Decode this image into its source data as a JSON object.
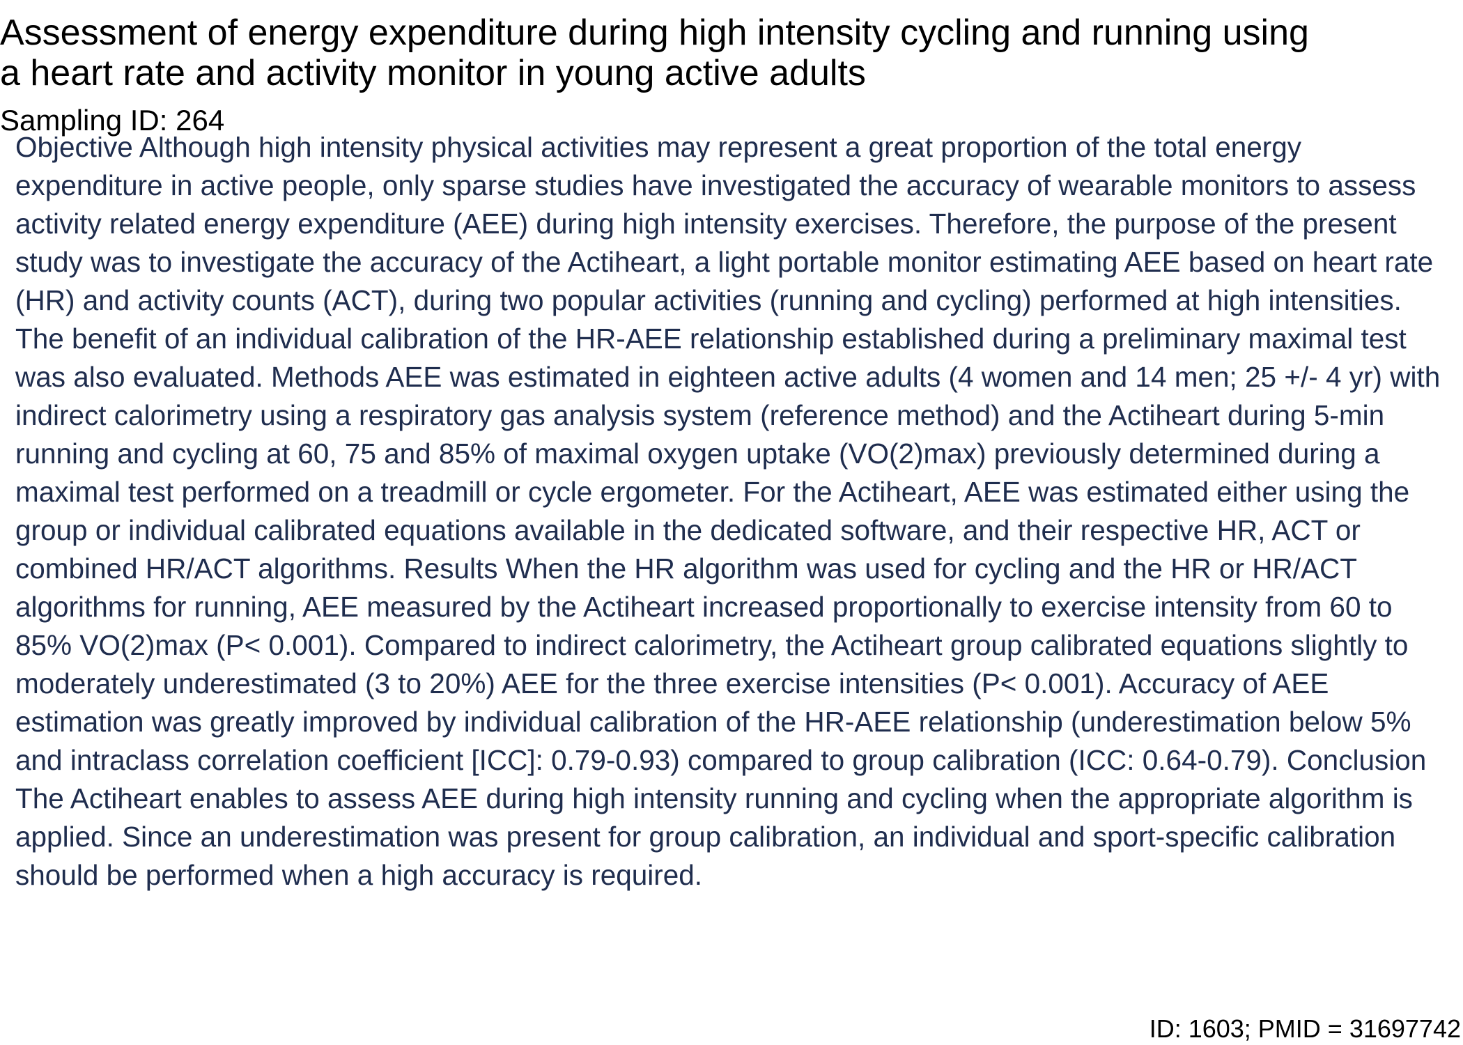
{
  "document": {
    "title": "Assessment of energy expenditure during high intensity cycling and running using a heart rate and activity monitor in young active adults",
    "sampling_id": "Sampling ID: 264",
    "abstract": "Objective Although high intensity physical activities may represent a great proportion of the total energy expenditure in active people, only sparse studies have investigated the accuracy of wearable monitors to assess activity related energy expenditure (AEE) during high intensity exercises. Therefore, the purpose of the present study was to investigate the accuracy of the Actiheart, a light portable monitor estimating AEE based on heart rate (HR) and activity counts (ACT), during two popular activities (running and cycling) performed at high intensities. The benefit of an individual calibration of the HR-AEE relationship established during a preliminary maximal test was also evaluated. Methods AEE was estimated in eighteen active adults (4 women and 14 men; 25 +/- 4 yr) with indirect calorimetry using a respiratory gas analysis system (reference method) and the Actiheart during 5-min running and cycling at 60, 75 and 85% of maximal oxygen uptake (VO(2)max) previously determined during a maximal test performed on a treadmill or cycle ergometer. For the Actiheart, AEE was estimated either using the group or individual calibrated equations available in the dedicated software, and their respective HR, ACT or combined HR/ACT algorithms. Results When the HR algorithm was used for cycling and the HR or HR/ACT algorithms for running, AEE measured by the Actiheart increased proportionally to exercise intensity from 60 to 85% VO(2)max (P< 0.001). Compared to indirect calorimetry, the Actiheart group calibrated equations slightly to moderately underestimated (3 to 20%) AEE for the three exercise intensities (P< 0.001). Accuracy of AEE estimation was greatly improved by individual calibration of the HR-AEE relationship (underestimation below 5% and intraclass correlation coefficient [ICC]: 0.79-0.93) compared to group calibration (ICC: 0.64-0.79). Conclusion The Actiheart enables to assess AEE during high intensity running and cycling when the appropriate algorithm is applied. Since an underestimation was present for group calibration, an individual and sport-specific calibration should be performed when a high accuracy is required.",
    "footer_id": "ID: 1603; PMID = 31697742"
  },
  "colors": {
    "title_text": "#000000",
    "abstract_text": "#1f2d4e",
    "background": "#ffffff"
  }
}
